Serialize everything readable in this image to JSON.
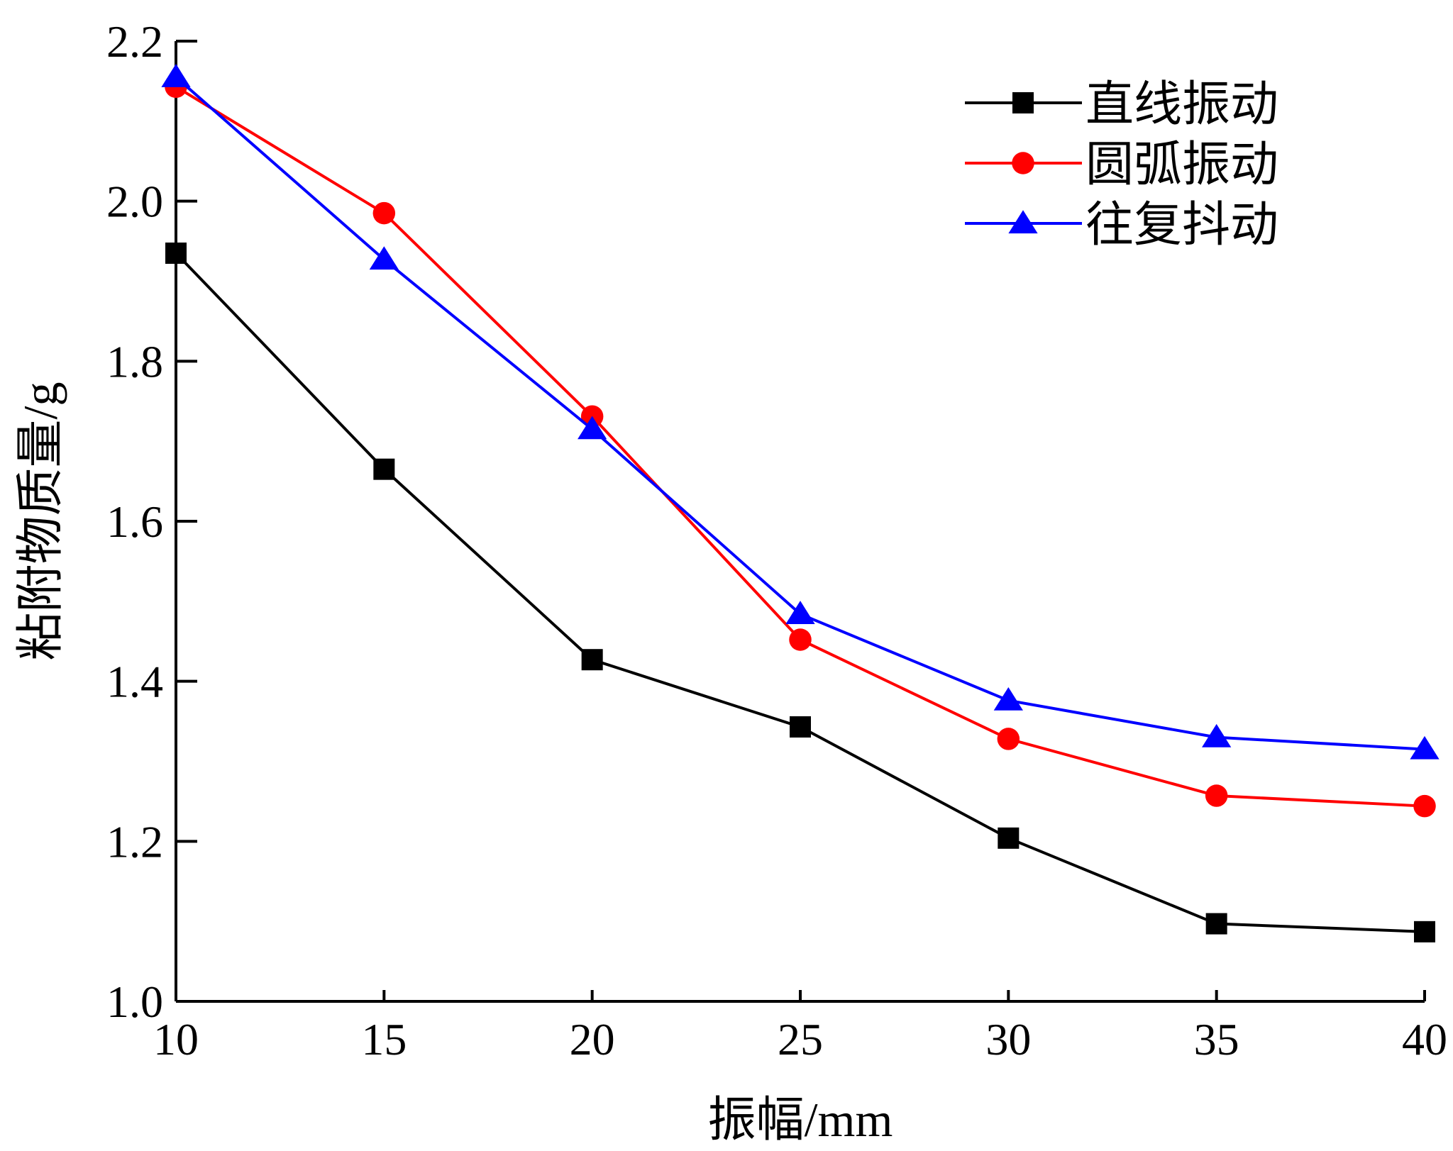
{
  "chart_data": {
    "type": "line",
    "title": "",
    "xlabel": "振幅/mm",
    "ylabel": "粘附物质量/g",
    "x": [
      10,
      15,
      20,
      25,
      30,
      35,
      40
    ],
    "xlim": [
      10,
      40
    ],
    "ylim": [
      1.0,
      2.2
    ],
    "xticks": [
      "10",
      "15",
      "20",
      "25",
      "30",
      "35",
      "40"
    ],
    "yticks": [
      "1.0",
      "1.2",
      "1.4",
      "1.6",
      "1.8",
      "2.0",
      "2.2"
    ],
    "grid": false,
    "legend_position": "top-right",
    "series": [
      {
        "name": "直线振动",
        "color": "#000000",
        "marker": "square",
        "values": [
          1.935,
          1.665,
          1.427,
          1.343,
          1.204,
          1.097,
          1.087
        ]
      },
      {
        "name": "圆弧振动",
        "color": "#ff0000",
        "marker": "circle",
        "values": [
          2.143,
          1.985,
          1.731,
          1.452,
          1.328,
          1.257,
          1.244
        ]
      },
      {
        "name": "往复抖动",
        "color": "#0000ff",
        "marker": "triangle",
        "values": [
          2.155,
          1.927,
          1.715,
          1.484,
          1.376,
          1.33,
          1.315
        ]
      }
    ]
  }
}
